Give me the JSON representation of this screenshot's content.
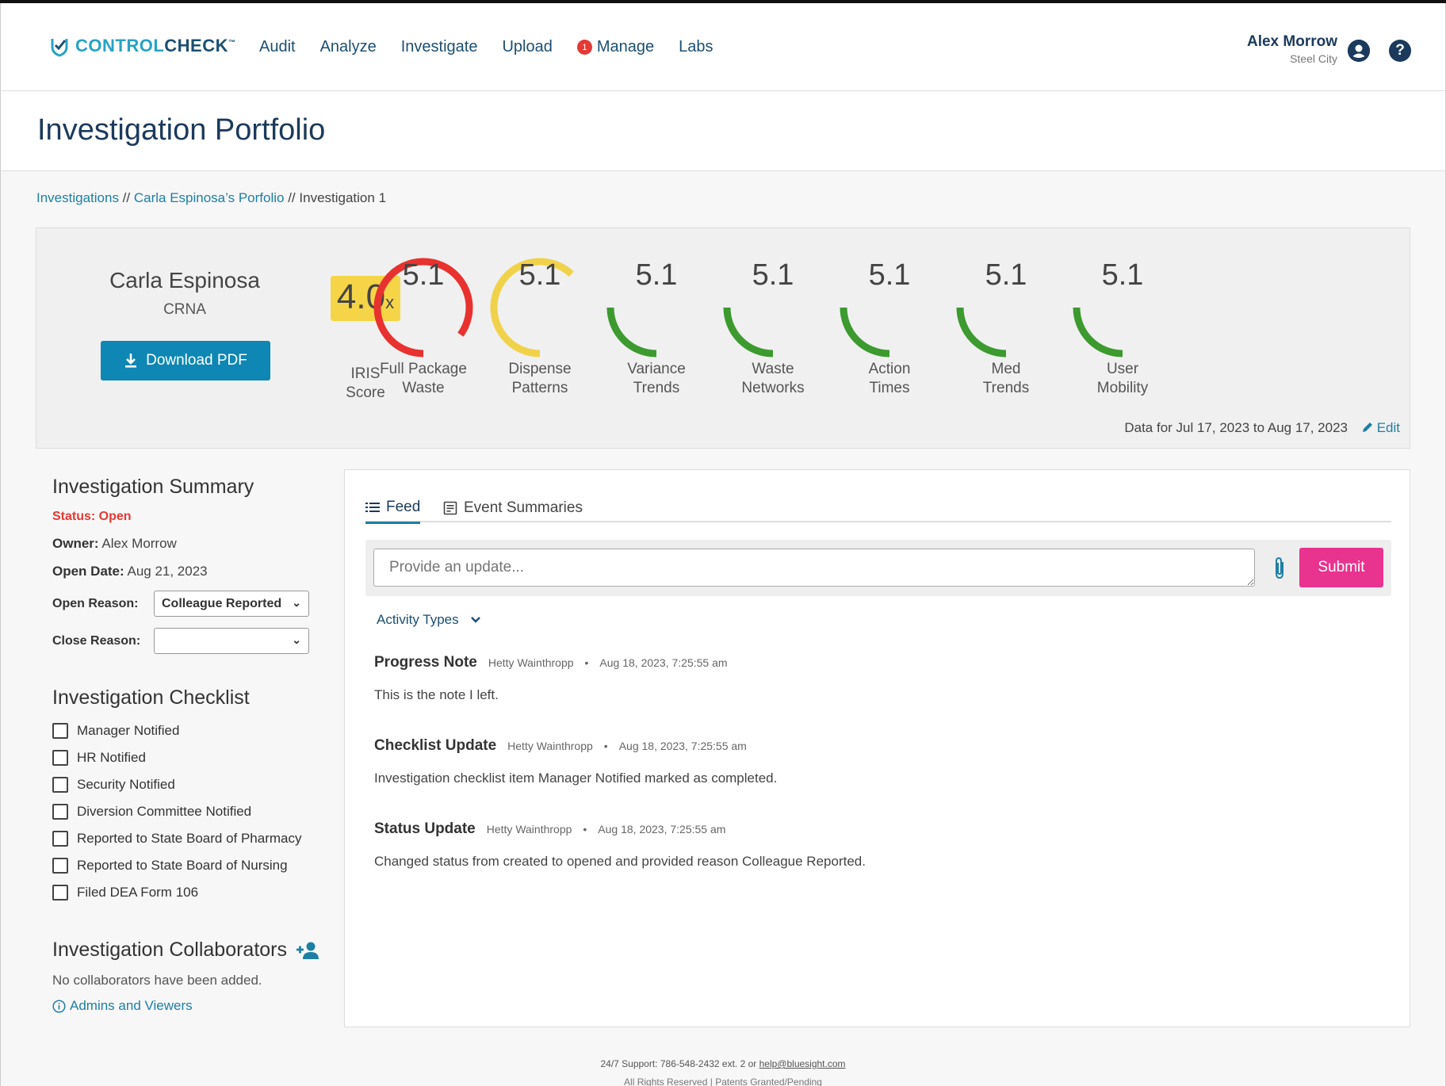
{
  "nav": {
    "logo_a": "CONTROL",
    "logo_b": "CHECK",
    "logo_tm": "™",
    "items": [
      "Audit",
      "Analyze",
      "Investigate",
      "Upload",
      "Manage",
      "Labs"
    ],
    "manage_badge": "1",
    "user_name": "Alex Morrow",
    "user_location": "Steel City",
    "help_glyph": "?"
  },
  "page": {
    "title": "Investigation Portfolio"
  },
  "breadcrumb": {
    "link1": "Investigations",
    "sep": " // ",
    "link2": "Carla Espinosa’s Porfolio",
    "current": "Investigation 1"
  },
  "subject": {
    "name": "Carla Espinosa",
    "role": "CRNA",
    "download_label": "Download PDF"
  },
  "iris": {
    "value": "4.0",
    "suffix": "x",
    "label_1": "IRIS",
    "label_2": "Score"
  },
  "metrics": [
    {
      "value": "5.1",
      "label_1": "Full Package",
      "label_2": "Waste",
      "level": 0.85,
      "color": "#e8322f"
    },
    {
      "value": "5.1",
      "label_1": "Dispense",
      "label_2": "Patterns",
      "level": 0.62,
      "color": "#f0d24a"
    },
    {
      "value": "5.1",
      "label_1": "Variance",
      "label_2": "Trends",
      "level": 0.25,
      "color": "#3c9a2f"
    },
    {
      "value": "5.1",
      "label_1": "Waste",
      "label_2": "Networks",
      "level": 0.25,
      "color": "#3c9a2f"
    },
    {
      "value": "5.1",
      "label_1": "Action",
      "label_2": "Times",
      "level": 0.25,
      "color": "#3c9a2f"
    },
    {
      "value": "5.1",
      "label_1": "Med",
      "label_2": "Trends",
      "level": 0.25,
      "color": "#3c9a2f"
    },
    {
      "value": "5.1",
      "label_1": "User",
      "label_2": "Mobility",
      "level": 0.25,
      "color": "#3c9a2f"
    }
  ],
  "data_range": "Data for Jul 17, 2023 to Aug 17, 2023",
  "edit_label": "Edit",
  "summary": {
    "heading": "Investigation Summary",
    "status": "Status: Open",
    "owner_label": "Owner:",
    "owner": "Alex Morrow",
    "open_date_label": "Open Date:",
    "open_date": "Aug 21, 2023",
    "open_reason_label": "Open Reason:",
    "open_reason": "Colleague Reported",
    "close_reason_label": "Close Reason:",
    "close_reason": ""
  },
  "checklist": {
    "heading": "Investigation Checklist",
    "items": [
      "Manager Notified",
      "HR Notified",
      "Security Notified",
      "Diversion Committee Notified",
      "Reported to State Board of Pharmacy",
      "Reported to State Board of Nursing",
      "Filed DEA Form 106"
    ]
  },
  "collaborators": {
    "heading": "Investigation Collaborators",
    "empty": "No collaborators have been added.",
    "link": "Admins and Viewers"
  },
  "feed": {
    "tab_feed": "Feed",
    "tab_events": "Event Summaries",
    "placeholder": "Provide an update...",
    "submit": "Submit",
    "activity_types": "Activity Types",
    "entries": [
      {
        "title": "Progress Note",
        "author": "Hetty Wainthropp",
        "time": "Aug 18, 2023, 7:25:55 am",
        "body": "This is the note I left."
      },
      {
        "title": "Checklist Update",
        "author": "Hetty Wainthropp",
        "time": "Aug 18, 2023, 7:25:55 am",
        "body": "Investigation checklist item Manager Notified marked as completed."
      },
      {
        "title": "Status Update",
        "author": "Hetty Wainthropp",
        "time": "Aug 18, 2023, 7:25:55 am",
        "body": "Changed status from created to opened and provided reason Colleague Reported."
      }
    ]
  },
  "footer": {
    "support_prefix": "24/7 Support: 786-548-2432 ext. 2 or ",
    "support_email": "help@bluesight.com",
    "rights": "All Rights Reserved | Patents Granted/Pending"
  }
}
